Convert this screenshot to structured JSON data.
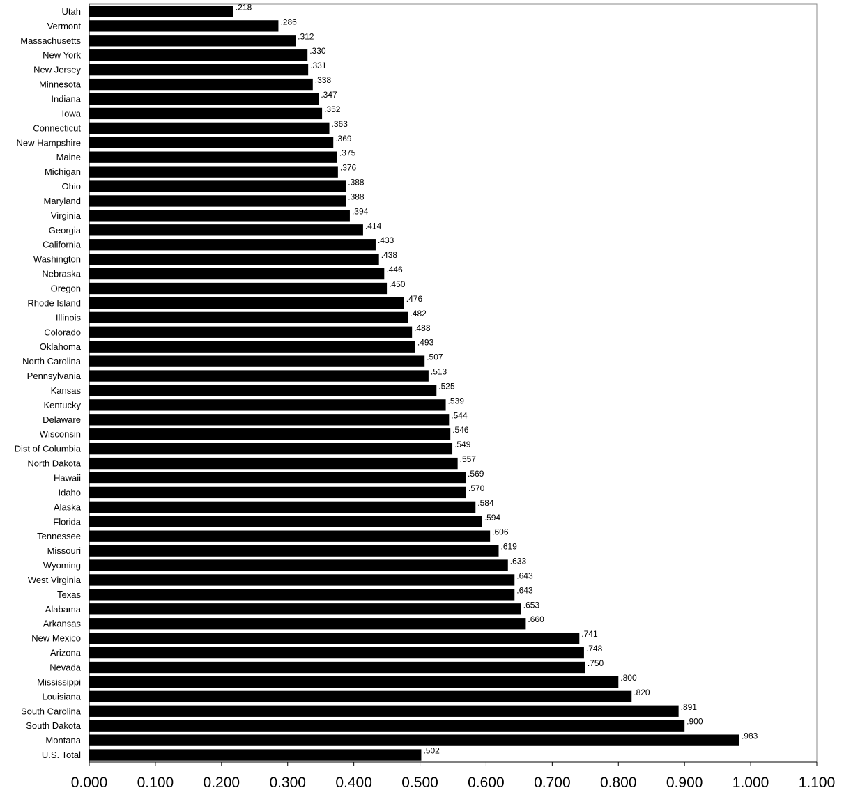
{
  "chart_data": {
    "type": "bar",
    "orientation": "horizontal",
    "title": "",
    "xlabel": "",
    "ylabel": "",
    "xlim": [
      0,
      1.1
    ],
    "x_ticks": [
      "0.000",
      "0.100",
      "0.200",
      "0.300",
      "0.400",
      "0.500",
      "0.600",
      "0.700",
      "0.800",
      "0.900",
      "1.000",
      "1.100"
    ],
    "grid": false,
    "legend": "none",
    "bar_color": "#000000",
    "categories": [
      "Utah",
      "Vermont",
      "Massachusetts",
      "New York",
      "New Jersey",
      "Minnesota",
      "Indiana",
      "Iowa",
      "Connecticut",
      "New Hampshire",
      "Maine",
      "Michigan",
      "Ohio",
      "Maryland",
      "Virginia",
      "Georgia",
      "California",
      "Washington",
      "Nebraska",
      "Oregon",
      "Rhode Island",
      "Illinois",
      "Colorado",
      "Oklahoma",
      "North Carolina",
      "Pennsylvania",
      "Kansas",
      "Kentucky",
      "Delaware",
      "Wisconsin",
      "Dist of Columbia",
      "North Dakota",
      "Hawaii",
      "Idaho",
      "Alaska",
      "Florida",
      "Tennessee",
      "Missouri",
      "Wyoming",
      "West Virginia",
      "Texas",
      "Alabama",
      "Arkansas",
      "New Mexico",
      "Arizona",
      "Nevada",
      "Mississippi",
      "Louisiana",
      "South Carolina",
      "South Dakota",
      "Montana",
      "U.S. Total"
    ],
    "values": [
      0.218,
      0.286,
      0.312,
      0.33,
      0.331,
      0.338,
      0.347,
      0.352,
      0.363,
      0.369,
      0.375,
      0.376,
      0.388,
      0.388,
      0.394,
      0.414,
      0.433,
      0.438,
      0.446,
      0.45,
      0.476,
      0.482,
      0.488,
      0.493,
      0.507,
      0.513,
      0.525,
      0.539,
      0.544,
      0.546,
      0.549,
      0.557,
      0.569,
      0.57,
      0.584,
      0.594,
      0.606,
      0.619,
      0.633,
      0.643,
      0.643,
      0.653,
      0.66,
      0.741,
      0.748,
      0.75,
      0.8,
      0.82,
      0.891,
      0.9,
      0.983,
      0.502
    ],
    "value_labels": [
      ".218",
      ".286",
      ".312",
      ".330",
      ".331",
      ".338",
      ".347",
      ".352",
      ".363",
      ".369",
      ".375",
      ".376",
      ".388",
      ".388",
      ".394",
      ".414",
      ".433",
      ".438",
      ".446",
      ".450",
      ".476",
      ".482",
      ".488",
      ".493",
      ".507",
      ".513",
      ".525",
      ".539",
      ".544",
      ".546",
      ".549",
      ".557",
      ".569",
      ".570",
      ".584",
      ".594",
      ".606",
      ".619",
      ".633",
      ".643",
      ".643",
      ".653",
      ".660",
      ".741",
      ".748",
      ".750",
      ".800",
      ".820",
      ".891",
      ".900",
      ".983",
      ".502"
    ]
  }
}
